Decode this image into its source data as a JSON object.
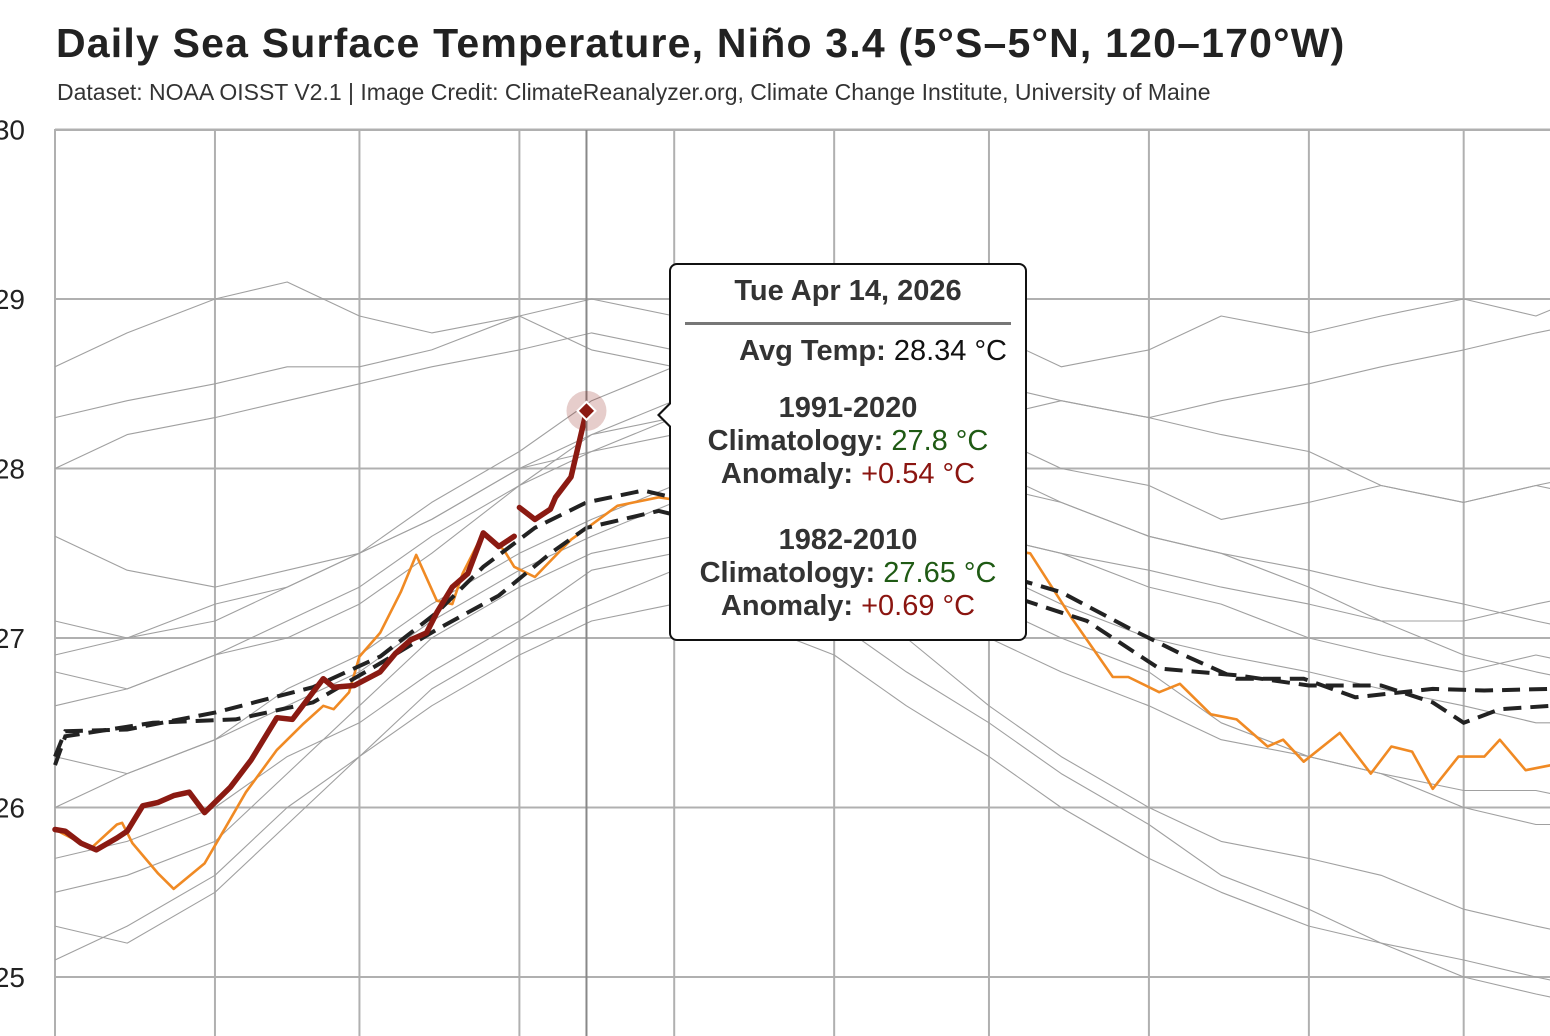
{
  "chart_data": {
    "type": "line",
    "title": "Daily Sea Surface Temperature, Niño 3.4 (5°S–5°N, 120–170°W)",
    "subtitle": "Dataset: NOAA OISST V2.1 | Image Credit: ClimateReanalyzer.org, Climate Change Institute, University of Maine",
    "xlabel": "",
    "ylabel": "",
    "ylim": [
      25,
      30
    ],
    "yticks": [
      25,
      26,
      27,
      28,
      29,
      30
    ],
    "x_month_gridlines": [
      "01-01",
      "02-01",
      "03-01",
      "04-01",
      "05-01",
      "06-01",
      "07-01",
      "08-01",
      "09-01",
      "10-01"
    ],
    "grid": true,
    "colors": {
      "current_year": "#8b1a12",
      "previous_year": "#f08a24",
      "climatology": "#222222",
      "other_years": "#a0a0a0",
      "grid": "#b0b0b0"
    },
    "gray_series_x": [
      "01-01",
      "01-15",
      "02-01",
      "02-15",
      "03-01",
      "03-15",
      "04-01",
      "04-15",
      "05-01",
      "05-15",
      "06-01",
      "06-15",
      "07-01",
      "07-15",
      "08-01",
      "08-15",
      "09-01",
      "09-15",
      "10-01",
      "10-15",
      "10-31"
    ],
    "gray_series": [
      [
        28.6,
        28.8,
        29.0,
        29.1,
        28.9,
        28.8,
        28.9,
        28.7,
        28.6,
        28.4,
        28.2,
        28.1,
        27.9,
        27.8,
        27.6,
        27.5,
        27.4,
        27.3,
        27.2,
        27.1,
        27.0
      ],
      [
        28.3,
        28.4,
        28.5,
        28.6,
        28.6,
        28.7,
        28.9,
        29.0,
        28.9,
        28.8,
        28.6,
        28.5,
        28.3,
        28.4,
        28.3,
        28.2,
        28.1,
        27.9,
        27.8,
        27.9,
        27.8
      ],
      [
        27.6,
        27.4,
        27.3,
        27.4,
        27.5,
        27.7,
        28.0,
        28.2,
        28.3,
        28.5,
        28.6,
        28.7,
        28.8,
        28.6,
        28.7,
        28.9,
        28.8,
        28.9,
        29.0,
        28.9,
        29.1
      ],
      [
        26.8,
        26.7,
        26.9,
        27.0,
        27.2,
        27.5,
        27.9,
        28.2,
        28.4,
        28.5,
        28.6,
        28.4,
        28.2,
        28.0,
        27.9,
        27.7,
        27.8,
        27.9,
        27.8,
        27.9,
        28.0
      ],
      [
        25.5,
        25.6,
        25.8,
        26.2,
        26.6,
        27.0,
        27.3,
        27.5,
        27.6,
        27.5,
        27.2,
        27.0,
        26.6,
        26.3,
        26.0,
        25.8,
        25.7,
        25.6,
        25.4,
        25.3,
        25.2
      ],
      [
        25.3,
        25.2,
        25.5,
        25.9,
        26.3,
        26.7,
        27.0,
        27.2,
        27.4,
        27.3,
        27.1,
        26.8,
        26.5,
        26.2,
        25.9,
        25.6,
        25.4,
        25.2,
        25.0,
        24.9,
        24.8
      ],
      [
        26.0,
        26.2,
        26.4,
        26.6,
        26.8,
        27.1,
        27.4,
        27.6,
        27.8,
        27.7,
        27.5,
        27.3,
        27.0,
        26.8,
        26.6,
        26.4,
        26.3,
        26.2,
        26.1,
        26.1,
        26.0
      ],
      [
        26.6,
        26.7,
        26.9,
        27.1,
        27.3,
        27.6,
        27.9,
        28.1,
        28.2,
        28.1,
        27.9,
        27.7,
        27.4,
        27.2,
        27.0,
        26.9,
        26.8,
        26.7,
        26.6,
        26.5,
        26.5
      ],
      [
        27.1,
        27.0,
        27.2,
        27.3,
        27.5,
        27.7,
        28.0,
        28.1,
        28.3,
        28.2,
        28.0,
        27.9,
        27.6,
        27.5,
        27.3,
        27.2,
        27.0,
        26.9,
        26.8,
        26.9,
        26.8
      ],
      [
        25.7,
        25.8,
        26.0,
        26.3,
        26.5,
        26.8,
        27.1,
        27.4,
        27.5,
        27.6,
        27.5,
        27.4,
        27.2,
        27.0,
        26.8,
        26.5,
        26.3,
        26.2,
        26.0,
        25.9,
        25.9
      ],
      [
        26.3,
        26.2,
        26.4,
        26.7,
        26.9,
        27.2,
        27.5,
        27.7,
        27.9,
        28.0,
        27.9,
        27.8,
        27.6,
        27.5,
        27.4,
        27.3,
        27.2,
        27.1,
        27.1,
        27.2,
        27.3
      ],
      [
        25.1,
        25.3,
        25.6,
        26.0,
        26.3,
        26.6,
        26.9,
        27.1,
        27.2,
        27.1,
        26.9,
        26.6,
        26.3,
        26.0,
        25.7,
        25.5,
        25.3,
        25.2,
        25.1,
        25.0,
        24.9
      ],
      [
        28.0,
        28.2,
        28.3,
        28.4,
        28.5,
        28.6,
        28.7,
        28.8,
        28.7,
        28.6,
        28.4,
        28.2,
        28.0,
        27.8,
        27.6,
        27.5,
        27.3,
        27.1,
        26.9,
        26.8,
        26.7
      ],
      [
        26.9,
        27.0,
        27.1,
        27.3,
        27.5,
        27.8,
        28.1,
        28.4,
        28.6,
        28.7,
        28.7,
        28.6,
        28.5,
        28.4,
        28.3,
        28.4,
        28.5,
        28.6,
        28.7,
        28.8,
        28.9
      ]
    ],
    "climatology_series": [
      {
        "style": "dashed",
        "x": [
          "01-01",
          "01-03",
          "01-15",
          "02-01",
          "02-20",
          "03-05",
          "03-16",
          "03-25",
          "04-04",
          "04-14",
          "04-25",
          "07-05",
          "07-15",
          "07-28",
          "08-07",
          "08-18",
          "08-31",
          "09-10",
          "09-25",
          "10-05",
          "10-18"
        ],
        "y": [
          26.3,
          26.45,
          26.46,
          26.56,
          26.71,
          26.89,
          27.15,
          27.42,
          27.65,
          27.8,
          27.87,
          27.36,
          27.27,
          27.06,
          26.91,
          26.76,
          26.76,
          26.65,
          26.7,
          26.69,
          26.7
        ]
      },
      {
        "style": "dashed",
        "x": [
          "01-01",
          "01-03",
          "01-20",
          "02-05",
          "02-20",
          "03-05",
          "03-16",
          "03-28",
          "04-07",
          "04-14",
          "04-28",
          "07-05",
          "07-20",
          "08-03",
          "08-18",
          "09-01",
          "09-15",
          "09-25",
          "10-01",
          "10-08",
          "10-18"
        ],
        "y": [
          26.25,
          26.42,
          26.5,
          26.52,
          26.62,
          26.85,
          27.05,
          27.25,
          27.5,
          27.65,
          27.75,
          27.25,
          27.1,
          26.82,
          26.78,
          26.72,
          26.72,
          26.62,
          26.5,
          26.58,
          26.6
        ]
      }
    ],
    "previous_year_series": {
      "x": [
        "01-01",
        "01-08",
        "01-13",
        "01-14",
        "01-16",
        "01-21",
        "01-24",
        "01-30",
        "02-03",
        "02-07",
        "02-13",
        "02-18",
        "02-22",
        "02-24",
        "02-27",
        "03-01",
        "03-05",
        "03-09",
        "03-12",
        "03-16",
        "03-19",
        "03-21",
        "03-25",
        "03-29",
        "03-31",
        "04-04",
        "04-11",
        "04-20",
        "04-28",
        "07-09",
        "07-17",
        "07-25",
        "07-28",
        "08-03",
        "08-07",
        "08-13",
        "08-18",
        "08-24",
        "08-27",
        "08-31",
        "09-07",
        "09-13",
        "09-17",
        "09-21",
        "09-25",
        "09-30",
        "10-05",
        "10-08",
        "10-13",
        "10-18"
      ],
      "y": [
        25.87,
        25.76,
        25.9,
        25.91,
        25.79,
        25.61,
        25.52,
        25.67,
        25.88,
        26.09,
        26.34,
        26.49,
        26.6,
        26.58,
        26.68,
        26.89,
        27.03,
        27.27,
        27.49,
        27.22,
        27.2,
        27.38,
        27.62,
        27.52,
        27.42,
        27.36,
        27.58,
        27.78,
        27.83,
        27.5,
        27.12,
        26.77,
        26.77,
        26.68,
        26.73,
        26.55,
        26.52,
        26.36,
        26.4,
        26.27,
        26.44,
        26.2,
        26.36,
        26.33,
        26.11,
        26.3,
        26.3,
        26.4,
        26.22,
        26.25
      ]
    },
    "current_year_series": {
      "x": [
        "01-01",
        "01-03",
        "01-06",
        "01-09",
        "01-13",
        "01-15",
        "01-18",
        "01-21",
        "01-24",
        "01-27",
        "01-30",
        "02-04",
        "02-08",
        "02-13",
        "02-16",
        "02-20",
        "02-22",
        "02-24",
        "02-28",
        "03-05",
        "03-08",
        "03-11",
        "03-14",
        "03-16",
        "03-19",
        "03-22",
        "03-25",
        "03-28",
        "03-31",
        "04-01",
        "04-04",
        "04-07",
        "04-08",
        "04-11",
        "04-14"
      ],
      "y": [
        25.87,
        25.86,
        25.79,
        25.75,
        25.82,
        25.86,
        26.01,
        26.03,
        26.07,
        26.09,
        25.97,
        26.12,
        26.28,
        26.53,
        26.52,
        26.68,
        26.76,
        26.71,
        26.72,
        26.8,
        26.91,
        26.99,
        27.03,
        27.15,
        27.3,
        27.38,
        27.62,
        27.54,
        27.6,
        27.77,
        27.7,
        27.76,
        27.83,
        27.95,
        28.34
      ],
      "gap_after": "03-31"
    },
    "highlighted_point": {
      "x": "04-14",
      "y": 28.34
    }
  },
  "tooltip": {
    "date": "Tue Apr 14, 2026",
    "avg_label": "Avg Temp:",
    "avg_value": "28.34 °C",
    "clim1_period": "1991-2020",
    "clim1_label": "Climatology:",
    "clim1_value": "27.8 °C",
    "clim1_anom_label": "Anomaly:",
    "clim1_anom_value": "+0.54 °C",
    "clim2_period": "1982-2010",
    "clim2_label": "Climatology:",
    "clim2_value": "27.65 °C",
    "clim2_anom_label": "Anomaly:",
    "clim2_anom_value": "+0.69 °C"
  }
}
